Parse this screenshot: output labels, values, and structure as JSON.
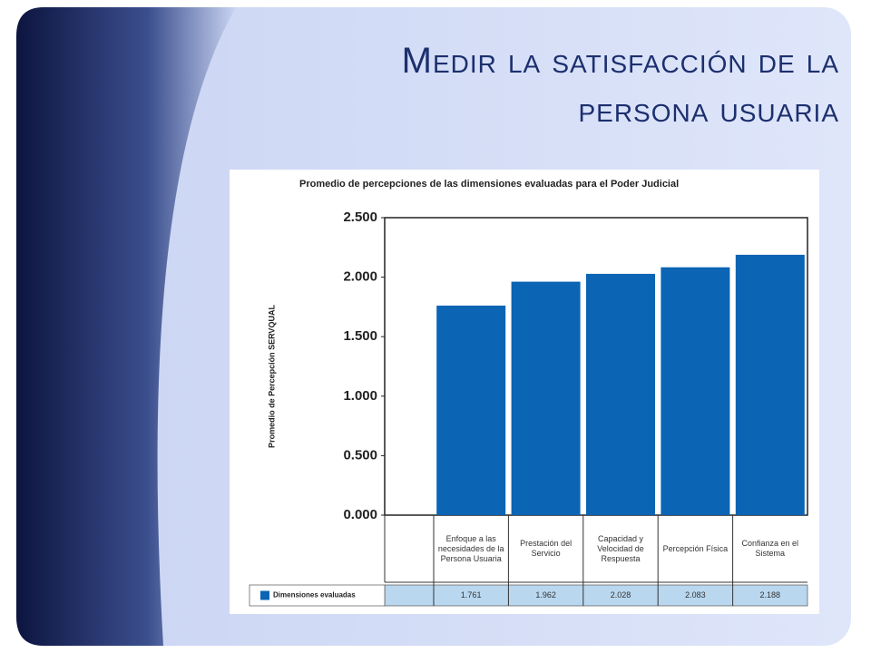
{
  "slide": {
    "title": "Medir la satisfacción de la persona usuaria"
  },
  "chart_data": {
    "type": "bar",
    "title": "Promedio de percepciones de las dimensiones evaluadas para el Poder Judicial",
    "y_label": "Promedio de Percepción SERVQUAL",
    "categories": [
      "Enfoque a las necesidades de la Persona Usuaria",
      "Prestación del Servicio",
      "Capacidad y Velocidad de Respuesta",
      "Percepción Física",
      "Confianza en el Sistema"
    ],
    "series": [
      {
        "name": "Dimensiones evaluadas",
        "color": "#0b64b4",
        "values": [
          1.761,
          1.962,
          2.028,
          2.083,
          2.188
        ]
      }
    ],
    "ylim": [
      0,
      2.5
    ],
    "yticks": [
      {
        "value": 0,
        "label": "0.000"
      },
      {
        "value": 0.5,
        "label": "0.500"
      },
      {
        "value": 1,
        "label": "1.000"
      },
      {
        "value": 1.5,
        "label": "1.500"
      },
      {
        "value": 2,
        "label": "2.000"
      },
      {
        "value": 2.5,
        "label": "2.500"
      }
    ]
  }
}
